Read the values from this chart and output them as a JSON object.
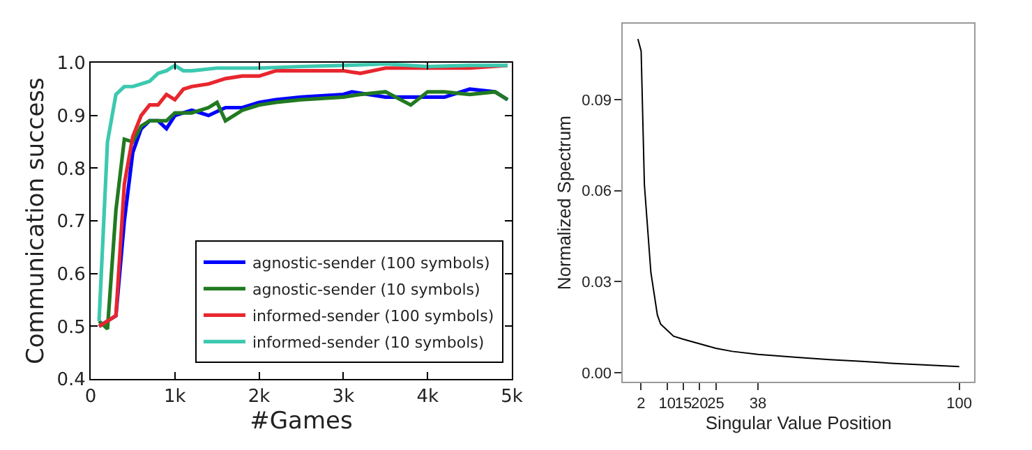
{
  "chart_data": [
    {
      "type": "line",
      "xlabel": "#Games",
      "ylabel": "Communication success",
      "xlim": [
        0,
        5000
      ],
      "ylim": [
        0.4,
        1.0
      ],
      "xticks": [
        0,
        {
          "value": 1000,
          "label": "1k"
        },
        {
          "value": 2000,
          "label": "2k"
        },
        {
          "value": 3000,
          "label": "3k"
        },
        {
          "value": 4000,
          "label": "4k"
        },
        {
          "value": 5000,
          "label": "5k"
        }
      ],
      "yticks": [
        0.4,
        0.5,
        0.6,
        0.7,
        0.8,
        0.9,
        {
          "value": 1.0,
          "label": "1.0"
        }
      ],
      "legend": "bottom right",
      "marker": "none",
      "line_style": "solid",
      "series": [
        {
          "name": "agnostic-sender (100 symbols)",
          "color": "#0000ff",
          "x": [
            100,
            200,
            300,
            400,
            500,
            600,
            700,
            800,
            900,
            1000,
            1200,
            1400,
            1600,
            1800,
            2000,
            2200,
            2500,
            3000,
            3100,
            3500,
            4000,
            4200,
            4500,
            4800,
            4950
          ],
          "values": [
            0.5,
            0.51,
            0.52,
            0.7,
            0.83,
            0.875,
            0.89,
            0.89,
            0.875,
            0.9,
            0.91,
            0.9,
            0.915,
            0.915,
            0.925,
            0.93,
            0.935,
            0.94,
            0.945,
            0.935,
            0.935,
            0.935,
            0.95,
            0.945,
            0.93
          ]
        },
        {
          "name": "agnostic-sender (10 symbols)",
          "color": "#217a21",
          "x": [
            100,
            200,
            300,
            400,
            500,
            600,
            700,
            800,
            900,
            1000,
            1200,
            1400,
            1500,
            1600,
            1800,
            2000,
            2200,
            2500,
            3000,
            3200,
            3500,
            3800,
            4000,
            4200,
            4500,
            4800,
            4950
          ],
          "values": [
            0.51,
            0.495,
            0.72,
            0.855,
            0.85,
            0.88,
            0.89,
            0.89,
            0.89,
            0.905,
            0.905,
            0.915,
            0.925,
            0.89,
            0.91,
            0.92,
            0.925,
            0.93,
            0.935,
            0.94,
            0.945,
            0.92,
            0.945,
            0.945,
            0.94,
            0.945,
            0.93
          ]
        },
        {
          "name": "informed-sender (100 symbols)",
          "color": "#e8262e",
          "x": [
            100,
            200,
            300,
            400,
            500,
            600,
            700,
            800,
            900,
            1000,
            1100,
            1200,
            1400,
            1600,
            1800,
            2000,
            2200,
            2500,
            3000,
            3200,
            3500,
            4000,
            4500,
            4950
          ],
          "values": [
            0.5,
            0.51,
            0.52,
            0.77,
            0.86,
            0.9,
            0.92,
            0.92,
            0.94,
            0.93,
            0.95,
            0.955,
            0.96,
            0.97,
            0.975,
            0.975,
            0.985,
            0.985,
            0.985,
            0.98,
            0.99,
            0.99,
            0.99,
            0.995
          ]
        },
        {
          "name": "informed-sender (10 symbols)",
          "color": "#3cc9b0",
          "x": [
            100,
            200,
            300,
            400,
            500,
            600,
            700,
            800,
            900,
            1000,
            1100,
            1200,
            1500,
            2000,
            2500,
            3000,
            3500,
            4000,
            4500,
            4950
          ],
          "values": [
            0.51,
            0.85,
            0.94,
            0.955,
            0.955,
            0.96,
            0.965,
            0.98,
            0.985,
            0.995,
            0.985,
            0.985,
            0.99,
            0.99,
            0.993,
            0.995,
            0.998,
            0.993,
            0.995,
            0.995
          ]
        }
      ]
    },
    {
      "type": "line",
      "xlabel": "Singular Value Position",
      "ylabel": "Normalized Spectrum",
      "xlim": [
        -3.6,
        104.6
      ],
      "ylim": [
        -0.003,
        0.115
      ],
      "xticks": [
        2,
        10,
        15,
        20,
        25,
        38,
        100
      ],
      "yticks": [
        {
          "value": 0.0,
          "label": "0.00"
        },
        {
          "value": 0.03,
          "label": "0.03"
        },
        {
          "value": 0.06,
          "label": "0.06"
        },
        {
          "value": 0.09,
          "label": "0.09"
        }
      ],
      "marker": "none",
      "line_style": "solid",
      "series": [
        {
          "color": "#000000",
          "x": [
            1,
            2,
            3,
            5,
            7,
            8,
            10,
            12,
            15,
            20,
            25,
            30,
            38,
            50,
            60,
            70,
            80,
            90,
            100
          ],
          "values": [
            0.11,
            0.106,
            0.062,
            0.033,
            0.019,
            0.016,
            0.014,
            0.012,
            0.011,
            0.0095,
            0.008,
            0.007,
            0.006,
            0.005,
            0.0043,
            0.0037,
            0.003,
            0.0025,
            0.002
          ]
        }
      ]
    }
  ]
}
